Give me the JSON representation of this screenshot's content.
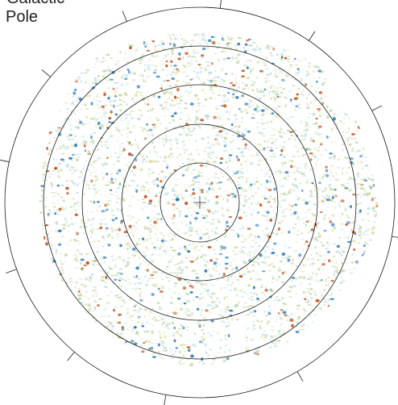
{
  "title": {
    "line1": "Galactic",
    "line2": "Pole"
  },
  "map": {
    "projection": "polar",
    "concentric_rings": 5,
    "tick_marks_on_outer_ring": 11,
    "center_marker": "crosshair",
    "colors": {
      "ring": "#1a1a1a",
      "background": "#ffffff",
      "positive": "#c0501a",
      "negative": "#2a78b8",
      "neutral_green": "#b8cf8a",
      "neutral_cyan": "#a8d6e0"
    }
  }
}
